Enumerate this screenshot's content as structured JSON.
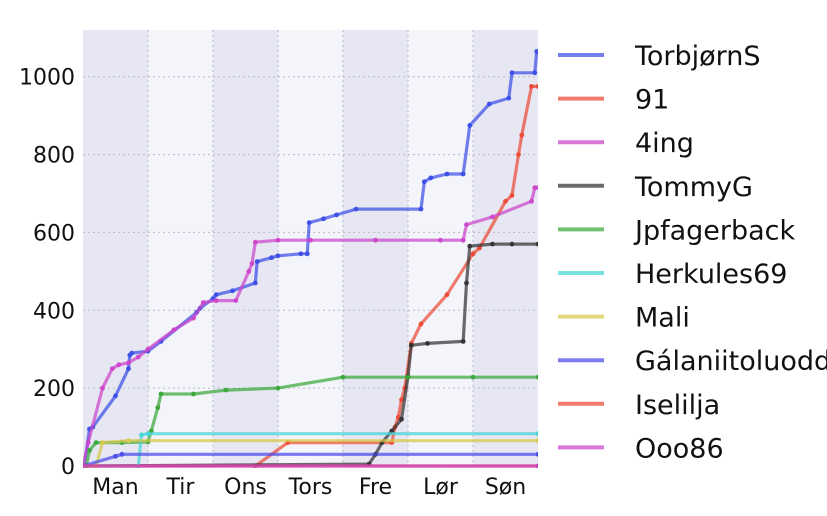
{
  "chart_data": {
    "type": "line",
    "title": "",
    "xlabel": "",
    "ylabel": "",
    "x_categories": [
      "Man",
      "Tir",
      "Ons",
      "Tors",
      "Fre",
      "Lør",
      "Søn"
    ],
    "x_unit": "day of week (continuous, 0 = start of Man)",
    "xlim": [
      0,
      7
    ],
    "ylim": [
      0,
      1120
    ],
    "yticks": [
      0,
      200,
      400,
      600,
      800,
      1000
    ],
    "grid": true,
    "alternating_day_bands": true,
    "legend_position": "right",
    "series": [
      {
        "name": "TorbjørnS",
        "color": "#3b4ee6",
        "points": [
          [
            0.02,
            0
          ],
          [
            0.1,
            95
          ],
          [
            0.15,
            100
          ],
          [
            0.5,
            180
          ],
          [
            0.7,
            250
          ],
          [
            0.72,
            285
          ],
          [
            0.75,
            290
          ],
          [
            1.0,
            295
          ],
          [
            1.2,
            320
          ],
          [
            1.75,
            395
          ],
          [
            1.8,
            405
          ],
          [
            2.0,
            430
          ],
          [
            2.05,
            440
          ],
          [
            2.3,
            450
          ],
          [
            2.65,
            470
          ],
          [
            2.68,
            525
          ],
          [
            2.9,
            535
          ],
          [
            3.0,
            540
          ],
          [
            3.35,
            545
          ],
          [
            3.45,
            545
          ],
          [
            3.48,
            625
          ],
          [
            3.7,
            635
          ],
          [
            3.9,
            645
          ],
          [
            4.2,
            660
          ],
          [
            5.2,
            660
          ],
          [
            5.25,
            730
          ],
          [
            5.35,
            740
          ],
          [
            5.6,
            750
          ],
          [
            5.85,
            750
          ],
          [
            5.95,
            875
          ],
          [
            6.25,
            930
          ],
          [
            6.55,
            945
          ],
          [
            6.6,
            1010
          ],
          [
            6.95,
            1010
          ],
          [
            6.98,
            1065
          ]
        ]
      },
      {
        "name": "91",
        "color": "#ec4934",
        "points": [
          [
            2.65,
            0
          ],
          [
            3.15,
            60
          ],
          [
            4.75,
            60
          ],
          [
            4.8,
            100
          ],
          [
            4.85,
            125
          ],
          [
            4.9,
            170
          ],
          [
            4.95,
            200
          ],
          [
            5.05,
            315
          ],
          [
            5.2,
            365
          ],
          [
            5.6,
            440
          ],
          [
            6.0,
            545
          ],
          [
            6.1,
            560
          ],
          [
            6.5,
            680
          ],
          [
            6.6,
            695
          ],
          [
            6.7,
            800
          ],
          [
            6.75,
            850
          ],
          [
            6.9,
            975
          ],
          [
            7.0,
            975
          ]
        ]
      },
      {
        "name": "4ing",
        "color": "#cc44cc",
        "points": [
          [
            0,
            0
          ],
          [
            0.08,
            60
          ],
          [
            0.3,
            200
          ],
          [
            0.45,
            250
          ],
          [
            0.55,
            260
          ],
          [
            0.7,
            265
          ],
          [
            0.85,
            280
          ],
          [
            1.0,
            300
          ],
          [
            1.4,
            350
          ],
          [
            1.7,
            380
          ],
          [
            1.85,
            420
          ],
          [
            2.05,
            425
          ],
          [
            2.35,
            425
          ],
          [
            2.55,
            500
          ],
          [
            2.6,
            520
          ],
          [
            2.65,
            575
          ],
          [
            3.0,
            580
          ],
          [
            3.5,
            580
          ],
          [
            4.5,
            580
          ],
          [
            5.5,
            580
          ],
          [
            5.85,
            580
          ],
          [
            5.9,
            620
          ],
          [
            6.3,
            640
          ],
          [
            6.9,
            680
          ],
          [
            6.95,
            715
          ],
          [
            7.0,
            715
          ]
        ]
      },
      {
        "name": "TommyG",
        "color": "#333333",
        "points": [
          [
            0,
            0
          ],
          [
            4.4,
            5
          ],
          [
            4.5,
            30
          ],
          [
            4.6,
            60
          ],
          [
            4.75,
            90
          ],
          [
            4.9,
            120
          ],
          [
            5.0,
            230
          ],
          [
            5.05,
            310
          ],
          [
            5.3,
            315
          ],
          [
            5.85,
            320
          ],
          [
            5.9,
            470
          ],
          [
            5.95,
            565
          ],
          [
            6.3,
            570
          ],
          [
            6.6,
            570
          ],
          [
            7.0,
            570
          ]
        ]
      },
      {
        "name": "Jpfagerback",
        "color": "#3aa83a",
        "points": [
          [
            0.05,
            0
          ],
          [
            0.1,
            40
          ],
          [
            0.2,
            60
          ],
          [
            0.6,
            60
          ],
          [
            1.0,
            62
          ],
          [
            1.05,
            90
          ],
          [
            1.15,
            150
          ],
          [
            1.2,
            185
          ],
          [
            1.7,
            185
          ],
          [
            2.2,
            195
          ],
          [
            3.0,
            200
          ],
          [
            4.0,
            228
          ],
          [
            5.0,
            228
          ],
          [
            6.0,
            228
          ],
          [
            7.0,
            228
          ]
        ]
      },
      {
        "name": "Herkules69",
        "color": "#44d6d6",
        "points": [
          [
            0,
            0
          ],
          [
            0.85,
            0
          ],
          [
            0.9,
            80
          ],
          [
            1.0,
            83
          ],
          [
            7.0,
            83
          ]
        ]
      },
      {
        "name": "Mali",
        "color": "#d6c84a",
        "points": [
          [
            0,
            0
          ],
          [
            0.2,
            0
          ],
          [
            0.3,
            60
          ],
          [
            0.7,
            65
          ],
          [
            7.0,
            65
          ]
        ]
      },
      {
        "name": "Gálaniitoluodda",
        "color": "#4a4ae8",
        "points": [
          [
            0,
            0
          ],
          [
            0.5,
            25
          ],
          [
            0.6,
            30
          ],
          [
            7.0,
            30
          ]
        ]
      },
      {
        "name": "Iselilja",
        "color": "#ec4934",
        "points": [
          [
            0,
            0
          ],
          [
            7.0,
            0
          ]
        ]
      },
      {
        "name": "Ooo86",
        "color": "#cc44cc",
        "points": [
          [
            0,
            0
          ],
          [
            7.0,
            0
          ]
        ]
      }
    ]
  }
}
